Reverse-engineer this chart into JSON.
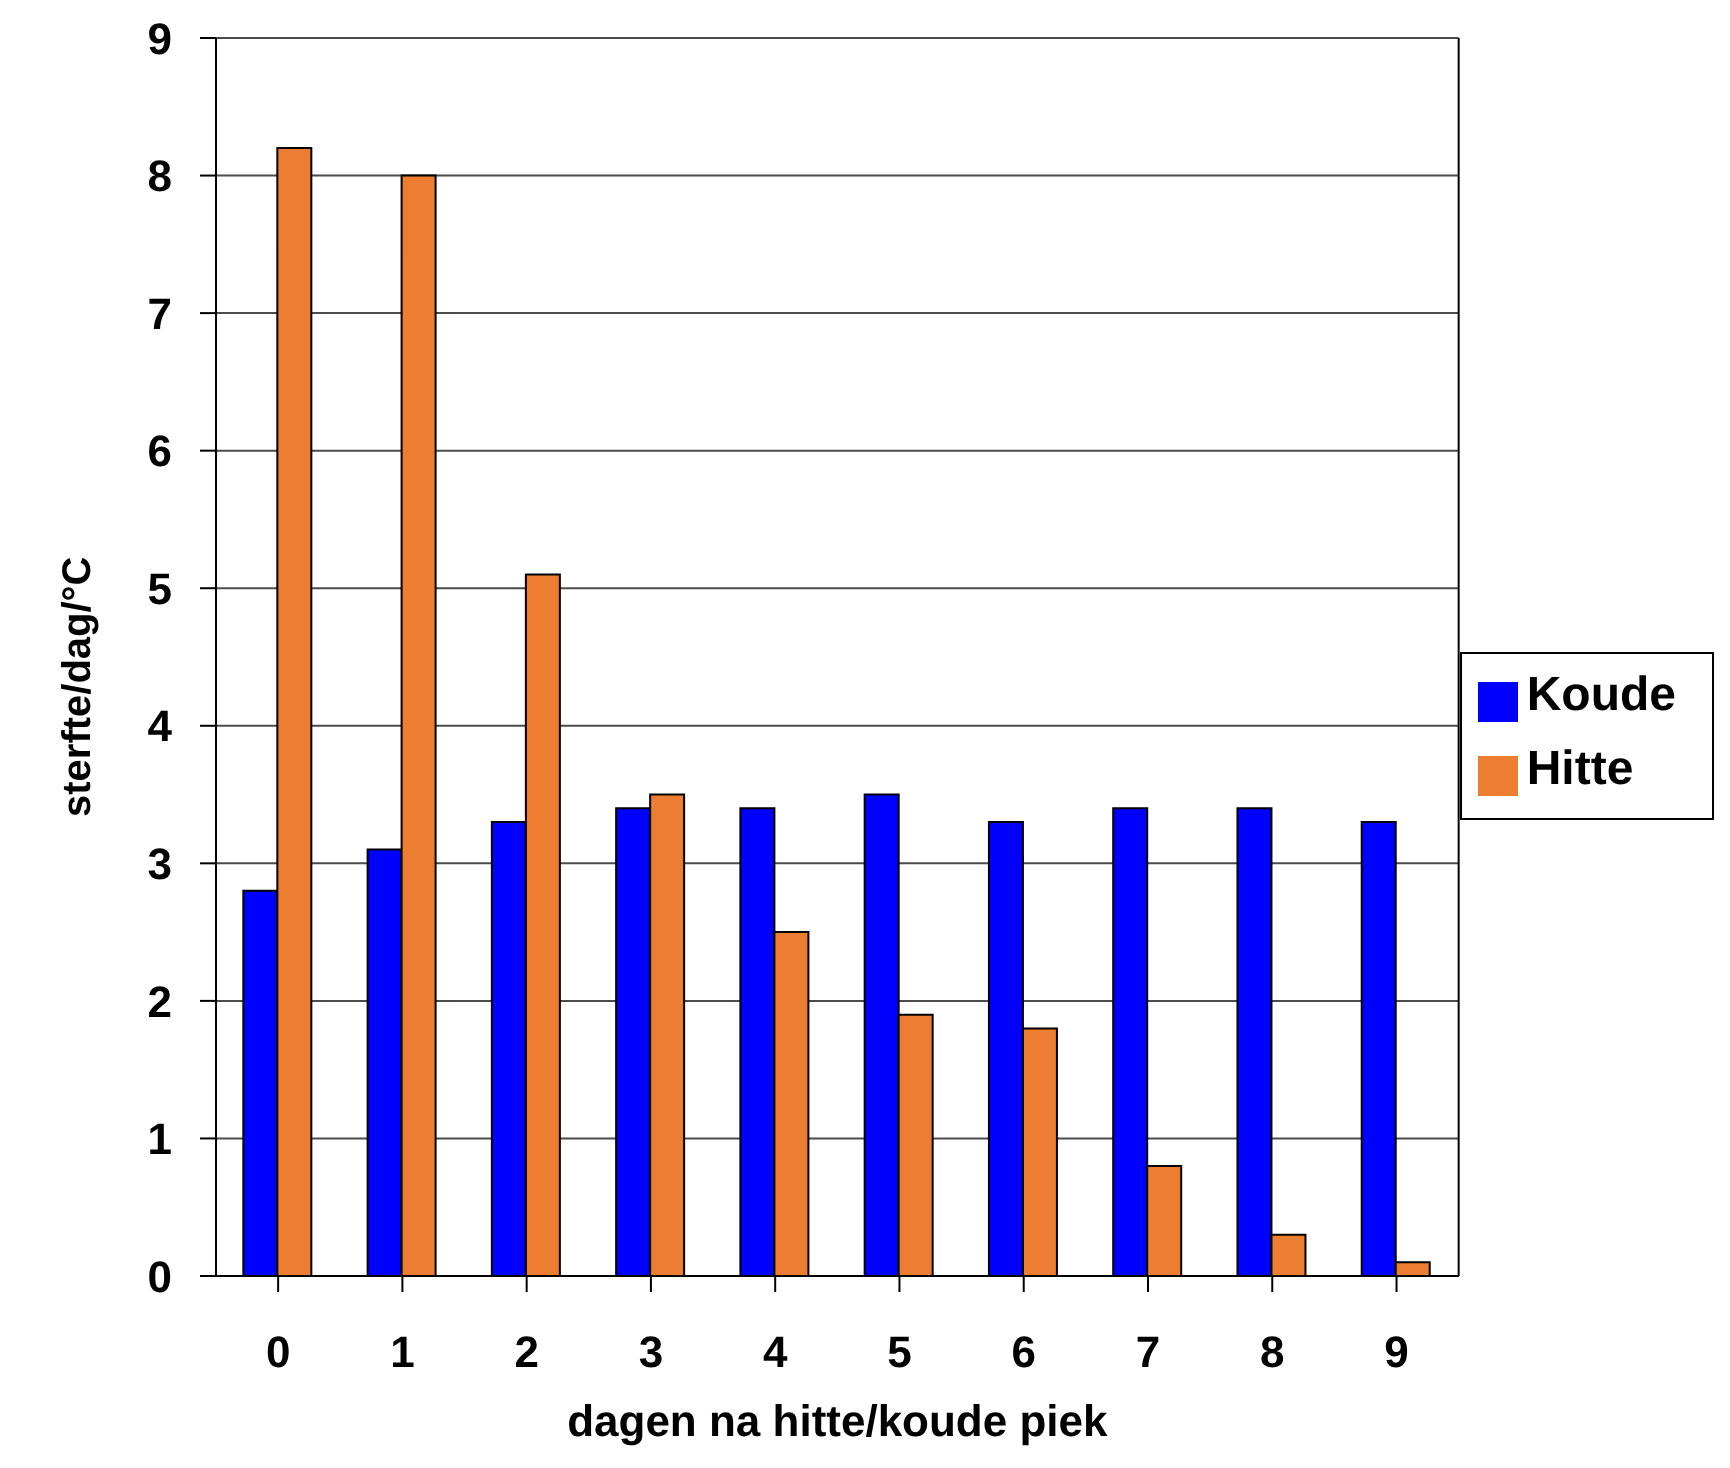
{
  "chart_data": {
    "type": "bar",
    "xlabel": "dagen na hitte/koude piek",
    "ylabel": "sterfte/dag/°C",
    "categories": [
      "0",
      "1",
      "2",
      "3",
      "4",
      "5",
      "6",
      "7",
      "8",
      "9"
    ],
    "series": [
      {
        "name": "Koude",
        "color": "#0000ff",
        "values": [
          2.8,
          3.1,
          3.3,
          3.4,
          3.4,
          3.5,
          3.3,
          3.4,
          3.4,
          3.3
        ]
      },
      {
        "name": "Hitte",
        "color": "#ed7d31",
        "values": [
          8.2,
          8.0,
          5.1,
          3.5,
          2.5,
          1.9,
          1.8,
          0.8,
          0.3,
          0.1
        ]
      }
    ],
    "ylim": [
      0,
      9
    ],
    "yticks": [
      0,
      1,
      2,
      3,
      4,
      5,
      6,
      7,
      8,
      9
    ],
    "grid": "y",
    "legend": "right"
  }
}
